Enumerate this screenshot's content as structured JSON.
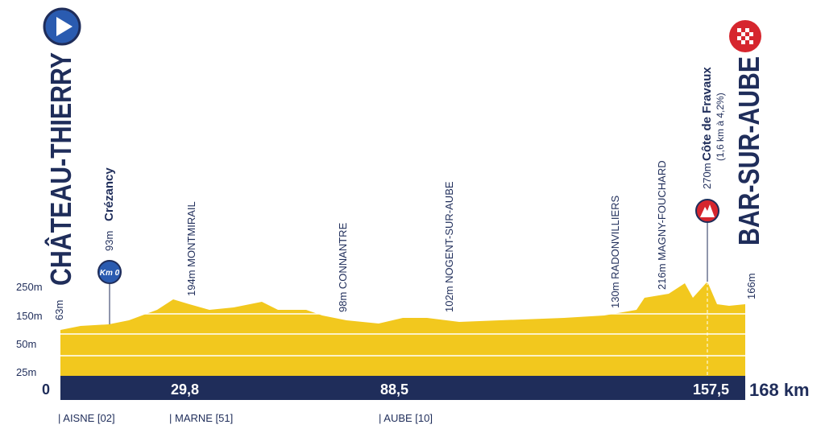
{
  "start": {
    "name": "CHÂTEAU-THIERRY",
    "altitude": "63m"
  },
  "finish": {
    "name": "BAR-SUR-AUBE",
    "altitude": "166m"
  },
  "km0": {
    "label": "Km 0",
    "altitude": "93m",
    "name": "Crézancy"
  },
  "places": [
    {
      "altitude_name": "194m MONTMIRAIL"
    },
    {
      "altitude_name": "98m CONNANTRE"
    },
    {
      "altitude_name": "102m NOGENT-SUR-AUBE"
    },
    {
      "altitude_name": "130m RADONVILLIERS"
    },
    {
      "altitude_name": "216m MAGNY-FOUCHARD"
    }
  ],
  "climb": {
    "altitude": "270m",
    "name": "Côte de Fravaux",
    "detail": "(1,6 km à 4,2%)"
  },
  "altitude_scale": [
    "250m",
    "150m",
    "50m",
    "25m"
  ],
  "km_marks": [
    "0",
    "29,8",
    "88,5",
    "157,5",
    "168 km"
  ],
  "departments": [
    "| AISNE [02]",
    "| MARNE [51]",
    "| AUBE [10]"
  ]
}
